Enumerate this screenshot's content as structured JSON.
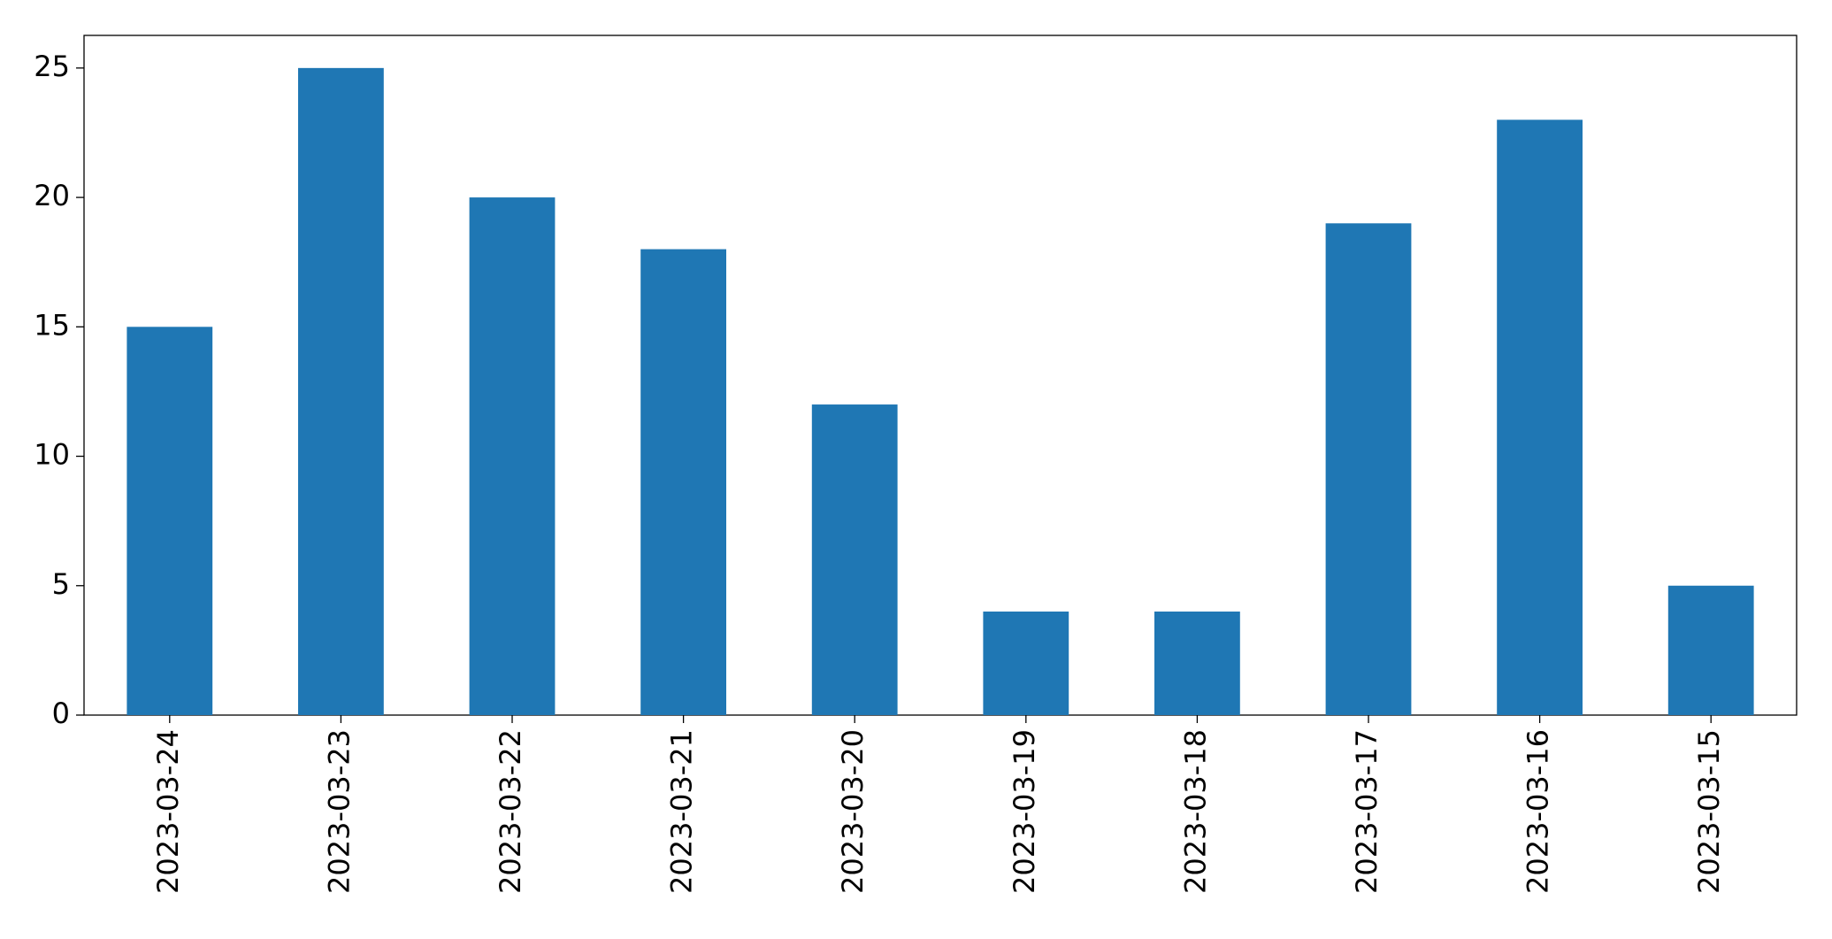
{
  "chart_data": {
    "type": "bar",
    "categories": [
      "2023-03-24",
      "2023-03-23",
      "2023-03-22",
      "2023-03-21",
      "2023-03-20",
      "2023-03-19",
      "2023-03-18",
      "2023-03-17",
      "2023-03-16",
      "2023-03-15"
    ],
    "values": [
      15,
      25,
      20,
      18,
      12,
      4,
      4,
      19,
      23,
      5
    ],
    "color": "#1f77b4",
    "ylim": [
      0,
      26.26
    ],
    "yticks": [
      0,
      5,
      10,
      15,
      20,
      25
    ],
    "grid": false
  }
}
